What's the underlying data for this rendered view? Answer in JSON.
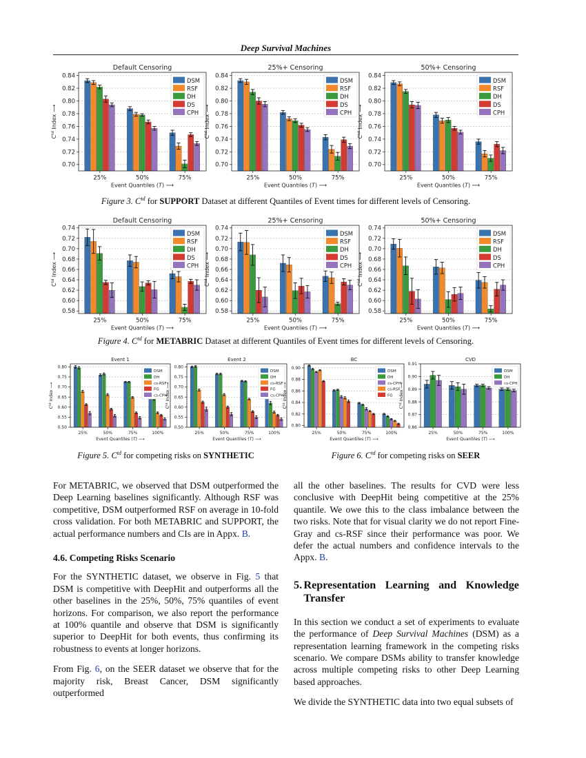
{
  "header": {
    "running_title": "Deep Survival Machines"
  },
  "figure3": {
    "caption_prefix": "Figure 3.",
    "caption_metric": "C^td",
    "caption_pre_bold": "for",
    "caption_bold": "SUPPORT",
    "caption_suffix": "Dataset at different Quantiles of Event times for different levels of Censoring."
  },
  "figure4": {
    "caption_prefix": "Figure 4.",
    "caption_metric": "C^td",
    "caption_pre_bold": "for",
    "caption_bold": "METABRIC",
    "caption_suffix": "Dataset at different Quantiles of Event times for different levels of Censoring."
  },
  "figure5": {
    "caption_prefix": "Figure 5.",
    "caption_metric": "C^td",
    "caption_text": "for competing risks on",
    "caption_bold": "SYNTHETIC"
  },
  "figure6": {
    "caption_prefix": "Figure 6.",
    "caption_metric": "C^td",
    "caption_text": "for competing risks on",
    "caption_bold": "SEER"
  },
  "colors": {
    "DSM": "#3a73ad",
    "RSF": "#f28a2b",
    "DH": "#3c9a3e",
    "DS": "#d33a31",
    "CPH": "#9674bd",
    "cs-RSF": "#f28a2b",
    "FG": "#d33a31",
    "cs-CPH": "#9674bd"
  },
  "chart_data": [
    {
      "type": "bar",
      "title": "Default Censoring",
      "xlabel": "Event Quantiles (T) ⟶",
      "ylabel": "C^td Index ⟶",
      "categories": [
        "25%",
        "50%",
        "75%"
      ],
      "ylim": [
        0.69,
        0.845
      ],
      "yticks": [
        0.7,
        0.72,
        0.74,
        0.76,
        0.78,
        0.8,
        0.82,
        0.84
      ],
      "legend": "top-right",
      "grid": true,
      "series": [
        {
          "name": "DSM",
          "values": [
            0.832,
            0.788,
            0.75
          ],
          "err": [
            0.003,
            0.003,
            0.004
          ]
        },
        {
          "name": "RSF",
          "values": [
            0.829,
            0.779,
            0.729
          ],
          "err": [
            0.003,
            0.003,
            0.005
          ]
        },
        {
          "name": "DH",
          "values": [
            0.822,
            0.778,
            0.701
          ],
          "err": [
            0.003,
            0.002,
            0.006
          ]
        },
        {
          "name": "DS",
          "values": [
            0.803,
            0.767,
            0.747
          ],
          "err": [
            0.005,
            0.003,
            0.003
          ]
        },
        {
          "name": "CPH",
          "values": [
            0.794,
            0.757,
            0.733
          ],
          "err": [
            0.003,
            0.003,
            0.003
          ]
        }
      ]
    },
    {
      "type": "bar",
      "title": "25%+ Censoring",
      "xlabel": "Event Quantiles (T) ⟶",
      "ylabel": "C^td Index ⟶",
      "categories": [
        "25%",
        "50%",
        "75%"
      ],
      "ylim": [
        0.69,
        0.845
      ],
      "yticks": [
        0.7,
        0.72,
        0.74,
        0.76,
        0.78,
        0.8,
        0.82,
        0.84
      ],
      "legend": "top-right",
      "grid": true,
      "series": [
        {
          "name": "DSM",
          "values": [
            0.832,
            0.782,
            0.743
          ],
          "err": [
            0.003,
            0.003,
            0.004
          ]
        },
        {
          "name": "RSF",
          "values": [
            0.83,
            0.772,
            0.724
          ],
          "err": [
            0.004,
            0.003,
            0.006
          ]
        },
        {
          "name": "DH",
          "values": [
            0.814,
            0.769,
            0.713
          ],
          "err": [
            0.004,
            0.003,
            0.006
          ]
        },
        {
          "name": "DS",
          "values": [
            0.8,
            0.762,
            0.739
          ],
          "err": [
            0.005,
            0.003,
            0.004
          ]
        },
        {
          "name": "CPH",
          "values": [
            0.795,
            0.755,
            0.729
          ],
          "err": [
            0.004,
            0.003,
            0.004
          ]
        }
      ]
    },
    {
      "type": "bar",
      "title": "50%+ Censoring",
      "xlabel": "Event Quantiles (T) ⟶",
      "ylabel": "C^td Index ⟶",
      "categories": [
        "25%",
        "50%",
        "75%"
      ],
      "ylim": [
        0.69,
        0.845
      ],
      "yticks": [
        0.7,
        0.72,
        0.74,
        0.76,
        0.78,
        0.8,
        0.82,
        0.84
      ],
      "legend": "top-right",
      "grid": true,
      "series": [
        {
          "name": "DSM",
          "values": [
            0.829,
            0.778,
            0.736
          ],
          "err": [
            0.003,
            0.004,
            0.004
          ]
        },
        {
          "name": "RSF",
          "values": [
            0.827,
            0.769,
            0.717
          ],
          "err": [
            0.003,
            0.004,
            0.005
          ]
        },
        {
          "name": "DH",
          "values": [
            0.815,
            0.77,
            0.71
          ],
          "err": [
            0.003,
            0.004,
            0.005
          ]
        },
        {
          "name": "DS",
          "values": [
            0.794,
            0.757,
            0.732
          ],
          "err": [
            0.005,
            0.003,
            0.004
          ]
        },
        {
          "name": "CPH",
          "values": [
            0.793,
            0.751,
            0.722
          ],
          "err": [
            0.005,
            0.003,
            0.005
          ]
        }
      ]
    },
    {
      "type": "bar",
      "title": "Default Censoring",
      "xlabel": "Event Quantiles (T) ⟶",
      "ylabel": "C^td Index ⟶",
      "categories": [
        "25%",
        "50%",
        "75%"
      ],
      "ylim": [
        0.575,
        0.745
      ],
      "yticks": [
        0.58,
        0.6,
        0.62,
        0.64,
        0.66,
        0.68,
        0.7,
        0.72,
        0.74
      ],
      "legend": "top-right",
      "grid": true,
      "series": [
        {
          "name": "DSM",
          "values": [
            0.722,
            0.677,
            0.652
          ],
          "err": [
            0.016,
            0.011,
            0.01
          ]
        },
        {
          "name": "RSF",
          "values": [
            0.714,
            0.674,
            0.646
          ],
          "err": [
            0.023,
            0.011,
            0.01
          ]
        },
        {
          "name": "DH",
          "values": [
            0.691,
            0.627,
            0.587
          ],
          "err": [
            0.013,
            0.009,
            0.006
          ]
        },
        {
          "name": "DS",
          "values": [
            0.635,
            0.634,
            0.637
          ],
          "err": [
            0.004,
            0.004,
            0.004
          ]
        },
        {
          "name": "CPH",
          "values": [
            0.62,
            0.621,
            0.63
          ],
          "err": [
            0.014,
            0.016,
            0.01
          ]
        }
      ]
    },
    {
      "type": "bar",
      "title": "25%+ Censoring",
      "xlabel": "Event Quantiles (T) ⟶",
      "ylabel": "C^td Index ⟶",
      "categories": [
        "25%",
        "50%",
        "75%"
      ],
      "ylim": [
        0.575,
        0.745
      ],
      "yticks": [
        0.58,
        0.6,
        0.62,
        0.64,
        0.66,
        0.68,
        0.7,
        0.72,
        0.74
      ],
      "legend": "top-right",
      "grid": true,
      "series": [
        {
          "name": "DSM",
          "values": [
            0.713,
            0.672,
            0.647
          ],
          "err": [
            0.017,
            0.016,
            0.01
          ]
        },
        {
          "name": "RSF",
          "values": [
            0.712,
            0.669,
            0.644
          ],
          "err": [
            0.023,
            0.014,
            0.011
          ]
        },
        {
          "name": "DH",
          "values": [
            0.688,
            0.619,
            0.594
          ],
          "err": [
            0.02,
            0.015,
            0.003
          ]
        },
        {
          "name": "DS",
          "values": [
            0.62,
            0.628,
            0.636
          ],
          "err": [
            0.024,
            0.015,
            0.006
          ]
        },
        {
          "name": "CPH",
          "values": [
            0.607,
            0.617,
            0.63
          ],
          "err": [
            0.019,
            0.012,
            0.009
          ]
        }
      ]
    },
    {
      "type": "bar",
      "title": "50%+ Censoring",
      "xlabel": "Event Quantiles (T) ⟶",
      "ylabel": "C^td Index ⟶",
      "categories": [
        "25%",
        "50%",
        "75%"
      ],
      "ylim": [
        0.575,
        0.745
      ],
      "yticks": [
        0.58,
        0.6,
        0.62,
        0.64,
        0.66,
        0.68,
        0.7,
        0.72,
        0.74
      ],
      "legend": "top-right",
      "grid": true,
      "series": [
        {
          "name": "DSM",
          "values": [
            0.709,
            0.665,
            0.639
          ],
          "err": [
            0.01,
            0.014,
            0.015
          ]
        },
        {
          "name": "RSF",
          "values": [
            0.701,
            0.663,
            0.635
          ],
          "err": [
            0.017,
            0.011,
            0.011
          ]
        },
        {
          "name": "DH",
          "values": [
            0.667,
            0.602,
            0.584
          ],
          "err": [
            0.017,
            0.015,
            0.006
          ]
        },
        {
          "name": "DS",
          "values": [
            0.618,
            0.612,
            0.622
          ],
          "err": [
            0.025,
            0.013,
            0.013
          ]
        },
        {
          "name": "CPH",
          "values": [
            0.603,
            0.614,
            0.63
          ],
          "err": [
            0.018,
            0.012,
            0.01
          ]
        }
      ]
    },
    {
      "type": "bar",
      "title": "Event 1",
      "xlabel": "Event Quantiles (T) ⟶",
      "ylabel": "C^td Index ⟶",
      "categories": [
        "25%",
        "50%",
        "75%",
        "100%"
      ],
      "ylim": [
        0.5,
        0.815
      ],
      "yticks": [
        0.5,
        0.55,
        0.6,
        0.65,
        0.7,
        0.75,
        0.8
      ],
      "legend": "top-right",
      "grid": true,
      "series": [
        {
          "name": "DSM",
          "values": [
            0.8,
            0.76,
            0.725,
            0.67
          ],
          "err": [
            0.006,
            0.005,
            0.003,
            0.004
          ]
        },
        {
          "name": "DH",
          "values": [
            0.795,
            0.765,
            0.725,
            0.64
          ],
          "err": [
            0.006,
            0.005,
            0.003,
            0.006
          ]
        },
        {
          "name": "cs-RSF",
          "values": [
            0.678,
            0.662,
            0.648,
            0.572
          ],
          "err": [
            0.005,
            0.005,
            0.004,
            0.004
          ]
        },
        {
          "name": "FG",
          "values": [
            0.613,
            0.59,
            0.572,
            0.56
          ],
          "err": [
            0.004,
            0.004,
            0.004,
            0.004
          ]
        },
        {
          "name": "cs-CPH",
          "values": [
            0.57,
            0.557,
            0.547,
            0.541
          ],
          "err": [
            0.008,
            0.006,
            0.006,
            0.005
          ]
        }
      ]
    },
    {
      "type": "bar",
      "title": "Event 2",
      "xlabel": "Event Quantiles (T) ⟶",
      "ylabel": "C^td Index ⟶",
      "categories": [
        "25%",
        "50%",
        "75%",
        "100%"
      ],
      "ylim": [
        0.5,
        0.815
      ],
      "yticks": [
        0.5,
        0.55,
        0.6,
        0.65,
        0.7,
        0.75,
        0.8
      ],
      "legend": "top-right",
      "grid": true,
      "series": [
        {
          "name": "DSM",
          "values": [
            0.8,
            0.765,
            0.73,
            0.68
          ],
          "err": [
            0.004,
            0.004,
            0.003,
            0.005
          ]
        },
        {
          "name": "DH",
          "values": [
            0.802,
            0.765,
            0.728,
            0.62
          ],
          "err": [
            0.004,
            0.004,
            0.003,
            0.008
          ]
        },
        {
          "name": "cs-RSF",
          "values": [
            0.685,
            0.662,
            0.64,
            0.575
          ],
          "err": [
            0.005,
            0.005,
            0.004,
            0.005
          ]
        },
        {
          "name": "FG",
          "values": [
            0.625,
            0.6,
            0.578,
            0.56
          ],
          "err": [
            0.005,
            0.005,
            0.004,
            0.004
          ]
        },
        {
          "name": "cs-CPH",
          "values": [
            0.59,
            0.565,
            0.55,
            0.54
          ],
          "err": [
            0.01,
            0.008,
            0.007,
            0.006
          ]
        }
      ]
    },
    {
      "type": "bar",
      "title": "BC",
      "xlabel": "Event Quantiles (T) ⟶",
      "ylabel": "C^td Index ⟶",
      "categories": [
        "25%",
        "50%",
        "75%",
        "100%"
      ],
      "ylim": [
        0.797,
        0.907
      ],
      "yticks": [
        0.8,
        0.82,
        0.84,
        0.86,
        0.88,
        0.9
      ],
      "legend": "top-right",
      "grid": true,
      "series": [
        {
          "name": "DSM",
          "values": [
            0.904,
            0.861,
            0.839,
            0.82
          ],
          "err": [
            0.001,
            0.001,
            0.001,
            0.001
          ]
        },
        {
          "name": "DH",
          "values": [
            0.898,
            0.862,
            0.836,
            0.816
          ],
          "err": [
            0.001,
            0.001,
            0.001,
            0.001
          ]
        },
        {
          "name": "cs-CPH",
          "values": [
            0.893,
            0.85,
            0.829,
            0.811
          ],
          "err": [
            0.001,
            0.002,
            0.002,
            0.001
          ]
        },
        {
          "name": "cs-RSF",
          "values": [
            0.896,
            0.848,
            0.825,
            0.808
          ],
          "err": [
            0.001,
            0.002,
            0.001,
            0.001
          ]
        },
        {
          "name": "FG",
          "values": [
            0.877,
            0.842,
            0.82,
            0.803
          ],
          "err": [
            0.001,
            0.002,
            0.001,
            0.001
          ]
        }
      ]
    },
    {
      "type": "bar",
      "title": "CVD",
      "xlabel": "Event Quantiles (T) ⟶",
      "ylabel": "C^td Index ⟶",
      "categories": [
        "25%",
        "50%",
        "75%",
        "100%"
      ],
      "ylim": [
        0.86,
        0.91
      ],
      "yticks": [
        0.86,
        0.87,
        0.88,
        0.89,
        0.9,
        0.91
      ],
      "legend": "top-right",
      "grid": true,
      "series": [
        {
          "name": "DSM",
          "values": [
            0.894,
            0.893,
            0.893,
            0.89
          ],
          "err": [
            0.003,
            0.003,
            0.001,
            0.001
          ]
        },
        {
          "name": "DH",
          "values": [
            0.901,
            0.892,
            0.893,
            0.89
          ],
          "err": [
            0.003,
            0.003,
            0.001,
            0.001
          ]
        },
        {
          "name": "cs-CPH",
          "values": [
            0.897,
            0.89,
            0.891,
            0.889
          ],
          "err": [
            0.004,
            0.004,
            0.001,
            0.001
          ]
        }
      ]
    }
  ],
  "text": {
    "left_p1": "For METABRIC, we observed that DSM outperformed the Deep Learning baselines significantly. Although RSF was competitive, DSM outperformed RSF on average in 10-fold cross validation. For both METABRIC and SUPPORT, the actual performance numbers and CIs are in Appx.",
    "left_p1_ref": "B",
    "left_p1_end": ".",
    "section_46": "4.6. Competing Risks Scenario",
    "left_p2_a": "For the SYNTHETIC dataset, we observe in Fig.",
    "left_p2_ref": "5",
    "left_p2_b": "that DSM is competitive with DeepHit and outperforms all the other baselines in the 25%, 50%, 75% quantiles of event horizons. For comparison, we also report the performance at 100% quantile and observe that DSM is significantly superior to DeepHit for both events, thus confirming its robustness to events at longer horizons.",
    "left_p3_a": "From Fig.",
    "left_p3_ref": "6",
    "left_p3_b": ", on the SEER dataset we observe that for the majority risk, Breast Cancer, DSM significantly outperformed",
    "right_p1": "all the other baselines. The results for CVD were less conclusive with DeepHit being competitive at the 25% quantile. We owe this to the class imbalance between the two risks. Note that for visual clarity we do not report Fine-Gray and cs-RSF since their performance was poor.  We defer the actual numbers and confidence intervals to the Appx.",
    "right_p1_ref": "B",
    "right_p1_end": ".",
    "section_5_num": "5.",
    "section_5_title": "Representation Learning and Knowledge Transfer",
    "right_p2_a": "In this section we conduct a set of experiments to evaluate the performance of",
    "right_p2_em": "Deep Survival Machines",
    "right_p2_b": "(DSM) as a representation learning framework in the competing risks scenario. We compare DSMs ability to transfer knowledge across multiple competing risks to other Deep Learning based approaches.",
    "right_p3": "We divide the SYNTHETIC data into two equal subsets of"
  }
}
